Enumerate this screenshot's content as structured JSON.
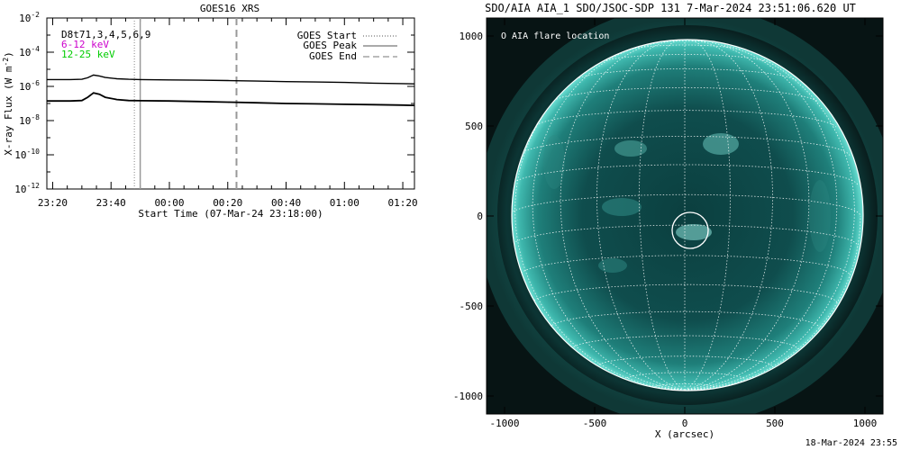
{
  "chart_data": [
    {
      "type": "line",
      "title": "GOES16 XRS",
      "xlabel": "Start Time (07-Mar-24 23:18:00)",
      "ylabel_main": "X-ray Flux (W m",
      "ylabel_exp": "-2",
      "ylabel_close": ")",
      "x_ticks": [
        "23:20",
        "23:40",
        "00:00",
        "00:20",
        "00:40",
        "01:00",
        "01:20"
      ],
      "y_ticks": [
        "-2",
        "-4",
        "-6",
        "-8",
        "-10",
        "-12"
      ],
      "y_tick_base": "10",
      "ylim": [
        1e-12,
        0.01
      ],
      "yscale": "log",
      "legend_left": [
        {
          "text": "D8t71,3,4,5,6,9",
          "color": "#000000"
        },
        {
          "text": "6-12 keV",
          "color": "#cc00cc"
        },
        {
          "text": "12-25 keV",
          "color": "#00cc00"
        }
      ],
      "legend_right": [
        {
          "text": "GOES Start",
          "style": "dotted"
        },
        {
          "text": "GOES Peak",
          "style": "solid"
        },
        {
          "text": "GOES End",
          "style": "dashed"
        }
      ],
      "markers": {
        "start": "23:48",
        "peak": "23:50",
        "end": "00:23"
      },
      "series": [
        {
          "x": [
            "23:18",
            "23:22",
            "23:26",
            "23:30",
            "23:32",
            "23:34",
            "23:36",
            "23:38",
            "23:42",
            "23:46",
            "23:50",
            "00:00",
            "00:10",
            "00:20",
            "00:30",
            "00:40",
            "00:50",
            "01:00",
            "01:10",
            "01:20",
            "01:24"
          ],
          "values": [
            2.5e-06,
            2.5e-06,
            2.5e-06,
            2.6e-06,
            3.2e-06,
            4.6e-06,
            4.1e-06,
            3.3e-06,
            2.8e-06,
            2.6e-06,
            2.5e-06,
            2.4e-06,
            2.3e-06,
            2.2e-06,
            2.05e-06,
            1.9e-06,
            1.8e-06,
            1.7e-06,
            1.55e-06,
            1.45e-06,
            1.4e-06
          ]
        },
        {
          "x": [
            "23:18",
            "23:22",
            "23:26",
            "23:30",
            "23:32",
            "23:34",
            "23:36",
            "23:38",
            "23:42",
            "23:46",
            "23:50",
            "00:00",
            "00:10",
            "00:20",
            "00:30",
            "00:40",
            "00:50",
            "01:00",
            "01:10",
            "01:20",
            "01:24"
          ],
          "values": [
            1.4e-07,
            1.4e-07,
            1.4e-07,
            1.5e-07,
            2.3e-07,
            4.2e-07,
            3.5e-07,
            2.3e-07,
            1.7e-07,
            1.5e-07,
            1.45e-07,
            1.4e-07,
            1.3e-07,
            1.2e-07,
            1.1e-07,
            1e-07,
            9.5e-08,
            9e-08,
            8.5e-08,
            8e-08,
            7.8e-08
          ]
        }
      ]
    },
    {
      "type": "scatter",
      "title": "SDO/AIA AIA_1 SDO/JSOC-SDP 131  7-Mar-2024 23:51:06.620 UT",
      "legend": "O AIA flare location",
      "xlabel": "X (arcsec)",
      "x_ticks": [
        "-1000",
        "-500",
        "0",
        "500",
        "1000"
      ],
      "y_ticks": [
        "1000",
        "500",
        "0",
        "-500",
        "-1000"
      ],
      "xlim": [
        -1100,
        1100
      ],
      "ylim": [
        -1100,
        1100
      ],
      "disk_radius_arcsec": 975,
      "flare_location": {
        "x": 30,
        "y": -80,
        "radius": 100
      },
      "grid": true
    }
  ],
  "footer": {
    "timestamp": "18-Mar-2024 23:55"
  }
}
